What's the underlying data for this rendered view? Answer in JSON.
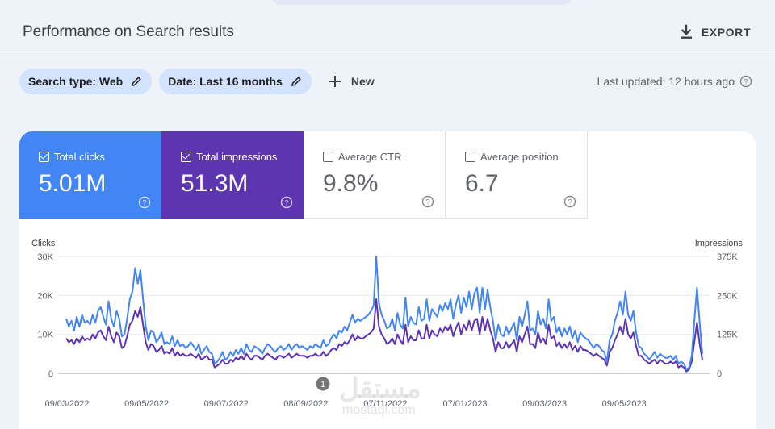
{
  "header": {
    "title": "Performance on Search results",
    "export_label": "EXPORT"
  },
  "filters": {
    "search_type": "Search type: Web",
    "date": "Date: Last 16 months",
    "new_label": "New",
    "last_updated": "Last updated: 12 hours ago"
  },
  "metrics": [
    {
      "label": "Total clicks",
      "value": "5.01M",
      "checked": true
    },
    {
      "label": "Total impressions",
      "value": "51.3M",
      "checked": true
    },
    {
      "label": "Average CTR",
      "value": "9.8%",
      "checked": false
    },
    {
      "label": "Average position",
      "value": "6.7",
      "checked": false
    }
  ],
  "colors": {
    "clicks": "#4285f4",
    "impressions": "#5e35b1",
    "chip": "#d3e3fd",
    "background": "#eef2f9"
  },
  "annotation_marker": "1",
  "watermark": {
    "arabic": "مستقل",
    "latin": "mostaql.com"
  },
  "chart_data": {
    "type": "line",
    "left_axis_title": "Clicks",
    "right_axis_title": "Impressions",
    "left_ticks": [
      "30K",
      "20K",
      "10K",
      "0"
    ],
    "right_ticks": [
      "375K",
      "250K",
      "125K",
      "0"
    ],
    "ylim_left": [
      0,
      30000
    ],
    "ylim_right": [
      0,
      375000
    ],
    "x_labels": [
      "09/03/2022",
      "09/05/2022",
      "09/07/2022",
      "08/09/2022",
      "07/11/2022",
      "07/01/2023",
      "09/03/2023",
      "09/05/2023"
    ],
    "grid": true,
    "series": [
      {
        "name": "Clicks",
        "color": "#4285f4",
        "values": [
          14000,
          12000,
          13500,
          11000,
          14500,
          12000,
          15000,
          13000,
          13500,
          12500,
          15000,
          13000,
          16000,
          17000,
          14500,
          12500,
          18500,
          14000,
          12000,
          16000,
          14000,
          9500,
          10000,
          14000,
          19000,
          21000,
          27000,
          23000,
          26500,
          19000,
          12000,
          8500,
          11000,
          10500,
          8000,
          9000,
          10500,
          7500,
          8000,
          7500,
          9500,
          7000,
          8500,
          7000,
          7500,
          6500,
          7000,
          8000,
          7000,
          6000,
          7500,
          5000,
          6000,
          7000,
          5500,
          5000,
          2500,
          3000,
          4000,
          5500,
          3500,
          4000,
          5500,
          4500,
          6000,
          5000,
          6500,
          5000,
          7500,
          6000,
          5500,
          7000,
          6500,
          6000,
          5000,
          6500,
          7500,
          7000,
          6000,
          5500,
          6500,
          7000,
          6000,
          6500,
          7500,
          6000,
          7000,
          7500,
          6500,
          7000,
          6500,
          6000,
          7000,
          6500,
          7500,
          7000,
          6500,
          8500,
          7000,
          7500,
          9000,
          10000,
          9000,
          11000,
          10500,
          12000,
          11000,
          13000,
          15000,
          13000,
          14000,
          13500,
          14000,
          14500,
          15000,
          16000,
          17500,
          30000,
          18000,
          15000,
          13500,
          11500,
          12000,
          14000,
          11000,
          15500,
          12500,
          11500,
          19500,
          12000,
          14500,
          13000,
          12500,
          17000,
          13500,
          14000,
          19000,
          13500,
          16500,
          15500,
          14500,
          17500,
          16000,
          18000,
          16500,
          19000,
          14000,
          17500,
          20000,
          15500,
          19500,
          17000,
          21000,
          16500,
          20500,
          22000,
          15500,
          22000,
          16500,
          21500,
          17000,
          13500,
          8500,
          12500,
          10000,
          9500,
          12000,
          10000,
          11500,
          13000,
          8500,
          14500,
          12000,
          15000,
          18500,
          11000,
          11500,
          10000,
          16000,
          12500,
          14000,
          11500,
          19000,
          13500,
          14500,
          10500,
          12000,
          9500,
          11500,
          10000,
          12000,
          9000,
          11000,
          8000,
          10500,
          9500,
          9000,
          8500,
          7500,
          6500,
          7500,
          7000,
          6000,
          5500,
          3000,
          8500,
          10000,
          13500,
          15500,
          18500,
          15000,
          21000,
          15000,
          13500,
          16000,
          10500,
          7000,
          6500,
          5000,
          4500,
          3500,
          4500,
          5500,
          4000,
          5000,
          4500,
          4000,
          4000,
          4500,
          3500,
          4500,
          2500,
          3000,
          2500,
          1000,
          1500,
          4500,
          13500,
          22000,
          13000,
          5000
        ]
      },
      {
        "name": "Impressions",
        "color": "#5e35b1",
        "values": [
          112000,
          100000,
          106000,
          94000,
          112000,
          100000,
          119000,
          106000,
          112000,
          106000,
          125000,
          112000,
          131000,
          138000,
          119000,
          106000,
          150000,
          119000,
          100000,
          131000,
          119000,
          81000,
          88000,
          119000,
          156000,
          169000,
          200000,
          181000,
          213000,
          156000,
          100000,
          75000,
          94000,
          88000,
          69000,
          75000,
          88000,
          63000,
          69000,
          63000,
          81000,
          56000,
          69000,
          56000,
          63000,
          56000,
          56000,
          63000,
          56000,
          50000,
          63000,
          44000,
          50000,
          56000,
          44000,
          44000,
          19000,
          25000,
          31000,
          44000,
          31000,
          31000,
          44000,
          38000,
          50000,
          44000,
          56000,
          44000,
          63000,
          50000,
          44000,
          56000,
          56000,
          50000,
          44000,
          56000,
          63000,
          56000,
          50000,
          44000,
          56000,
          56000,
          50000,
          56000,
          63000,
          50000,
          56000,
          63000,
          56000,
          56000,
          56000,
          50000,
          56000,
          56000,
          63000,
          56000,
          56000,
          69000,
          56000,
          63000,
          75000,
          81000,
          75000,
          94000,
          88000,
          100000,
          94000,
          106000,
          125000,
          106000,
          119000,
          112000,
          112000,
          119000,
          125000,
          131000,
          144000,
          238000,
          150000,
          125000,
          112000,
          94000,
          100000,
          112000,
          94000,
          125000,
          106000,
          94000,
          156000,
          100000,
          119000,
          106000,
          106000,
          138000,
          112000,
          112000,
          156000,
          112000,
          138000,
          125000,
          119000,
          144000,
          131000,
          150000,
          138000,
          156000,
          119000,
          144000,
          163000,
          125000,
          156000,
          138000,
          169000,
          138000,
          169000,
          175000,
          125000,
          181000,
          138000,
          175000,
          138000,
          112000,
          69000,
          100000,
          81000,
          81000,
          100000,
          81000,
          94000,
          106000,
          69000,
          119000,
          100000,
          125000,
          150000,
          94000,
          94000,
          81000,
          131000,
          100000,
          112000,
          94000,
          156000,
          112000,
          119000,
          88000,
          100000,
          81000,
          94000,
          81000,
          100000,
          75000,
          88000,
          69000,
          88000,
          75000,
          75000,
          69000,
          63000,
          56000,
          63000,
          56000,
          50000,
          44000,
          25000,
          69000,
          81000,
          106000,
          125000,
          150000,
          125000,
          175000,
          125000,
          112000,
          131000,
          88000,
          56000,
          56000,
          44000,
          38000,
          31000,
          38000,
          44000,
          31000,
          44000,
          38000,
          31000,
          31000,
          38000,
          31000,
          38000,
          19000,
          25000,
          19000,
          6000,
          13000,
          38000,
          100000,
          163000,
          94000,
          44000
        ]
      }
    ]
  }
}
